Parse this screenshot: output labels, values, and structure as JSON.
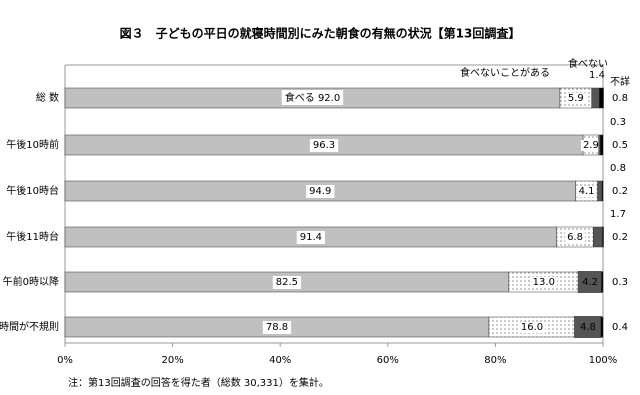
{
  "chart_data": {
    "type": "stacked_bar_horizontal",
    "title": "図３　子どもの平日の就寝時間別にみた朝食の有無の状況【第13回調査】",
    "note": "注：第13回調査の回答を得た者（総数 30,331）を集計。",
    "categories": [
      "総 数",
      "午後10時前",
      "午後10時台",
      "午後11時台",
      "午前0時以降",
      "時間が不規則"
    ],
    "series": [
      {
        "name": "食べる",
        "color": "#c0c0c0",
        "values": [
          92.0,
          96.3,
          94.9,
          91.4,
          82.5,
          78.8
        ],
        "value_labels": [
          "92.0",
          "96.3",
          "94.9",
          "91.4",
          "82.5",
          "78.8"
        ]
      },
      {
        "name": "食べないことがある",
        "color": "#ffffff",
        "values": [
          5.9,
          2.9,
          4.1,
          6.8,
          13.0,
          16.0
        ],
        "value_labels": [
          "5.9",
          "2.9",
          "4.1",
          "6.8",
          "13.0",
          "16.0"
        ]
      },
      {
        "name": "食べない",
        "color": "#555555",
        "values": [
          1.4,
          0.3,
          0.8,
          1.7,
          4.2,
          4.8
        ],
        "value_labels": [
          "1.4",
          "0.3",
          "0.8",
          "1.7",
          "4.2",
          "4.8"
        ]
      },
      {
        "name": "不詳",
        "color": "#000000",
        "values": [
          0.8,
          0.5,
          0.2,
          0.2,
          0.3,
          0.4
        ],
        "value_labels": [
          "0.8",
          "0.5",
          "0.2",
          "0.2",
          "0.3",
          "0.4"
        ]
      }
    ],
    "xlim": [
      0,
      100
    ],
    "xticks": [
      {
        "value": 0,
        "label": "0%"
      },
      {
        "value": 20,
        "label": "20%"
      },
      {
        "value": 40,
        "label": "40%"
      },
      {
        "value": 60,
        "label": "60%"
      },
      {
        "value": 80,
        "label": "80%"
      },
      {
        "value": 100,
        "label": "100%"
      }
    ]
  }
}
